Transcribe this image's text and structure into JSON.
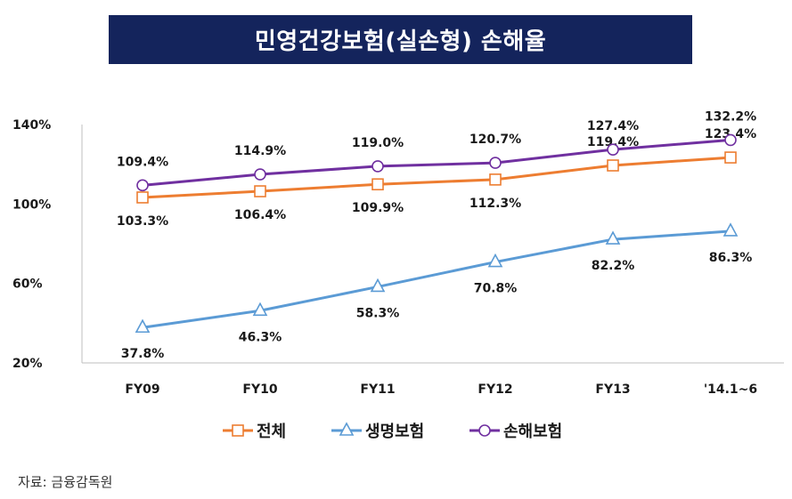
{
  "title": "민영건강보험(실손형) 손해율",
  "source": "자료: 금융감독원",
  "chart_data": {
    "type": "line",
    "categories": [
      "FY09",
      "FY10",
      "FY11",
      "FY12",
      "FY13",
      "'14.1~6"
    ],
    "ylim": [
      20,
      140
    ],
    "yticks": [
      "20%",
      "60%",
      "100%",
      "140%"
    ],
    "ytick_values": [
      20,
      60,
      100,
      140
    ],
    "grid": false,
    "legend_position": "bottom",
    "series": [
      {
        "name": "전체",
        "color": "#ed7d31",
        "marker": "square",
        "values": [
          103.3,
          106.4,
          109.9,
          112.3,
          119.4,
          123.4
        ],
        "labels": [
          "103.3%",
          "106.4%",
          "109.9%",
          "112.3%",
          "119.4%",
          "123.4%"
        ]
      },
      {
        "name": "생명보험",
        "color": "#5b9bd5",
        "marker": "triangle",
        "values": [
          37.8,
          46.3,
          58.3,
          70.8,
          82.2,
          86.3
        ],
        "labels": [
          "37.8%",
          "46.3%",
          "58.3%",
          "70.8%",
          "82.2%",
          "86.3%"
        ]
      },
      {
        "name": "손해보험",
        "color": "#7030a0",
        "marker": "circle",
        "values": [
          109.4,
          114.9,
          119.0,
          120.7,
          127.4,
          132.2
        ],
        "labels": [
          "109.4%",
          "114.9%",
          "119.0%",
          "120.7%",
          "127.4%",
          "132.2%"
        ]
      }
    ]
  }
}
